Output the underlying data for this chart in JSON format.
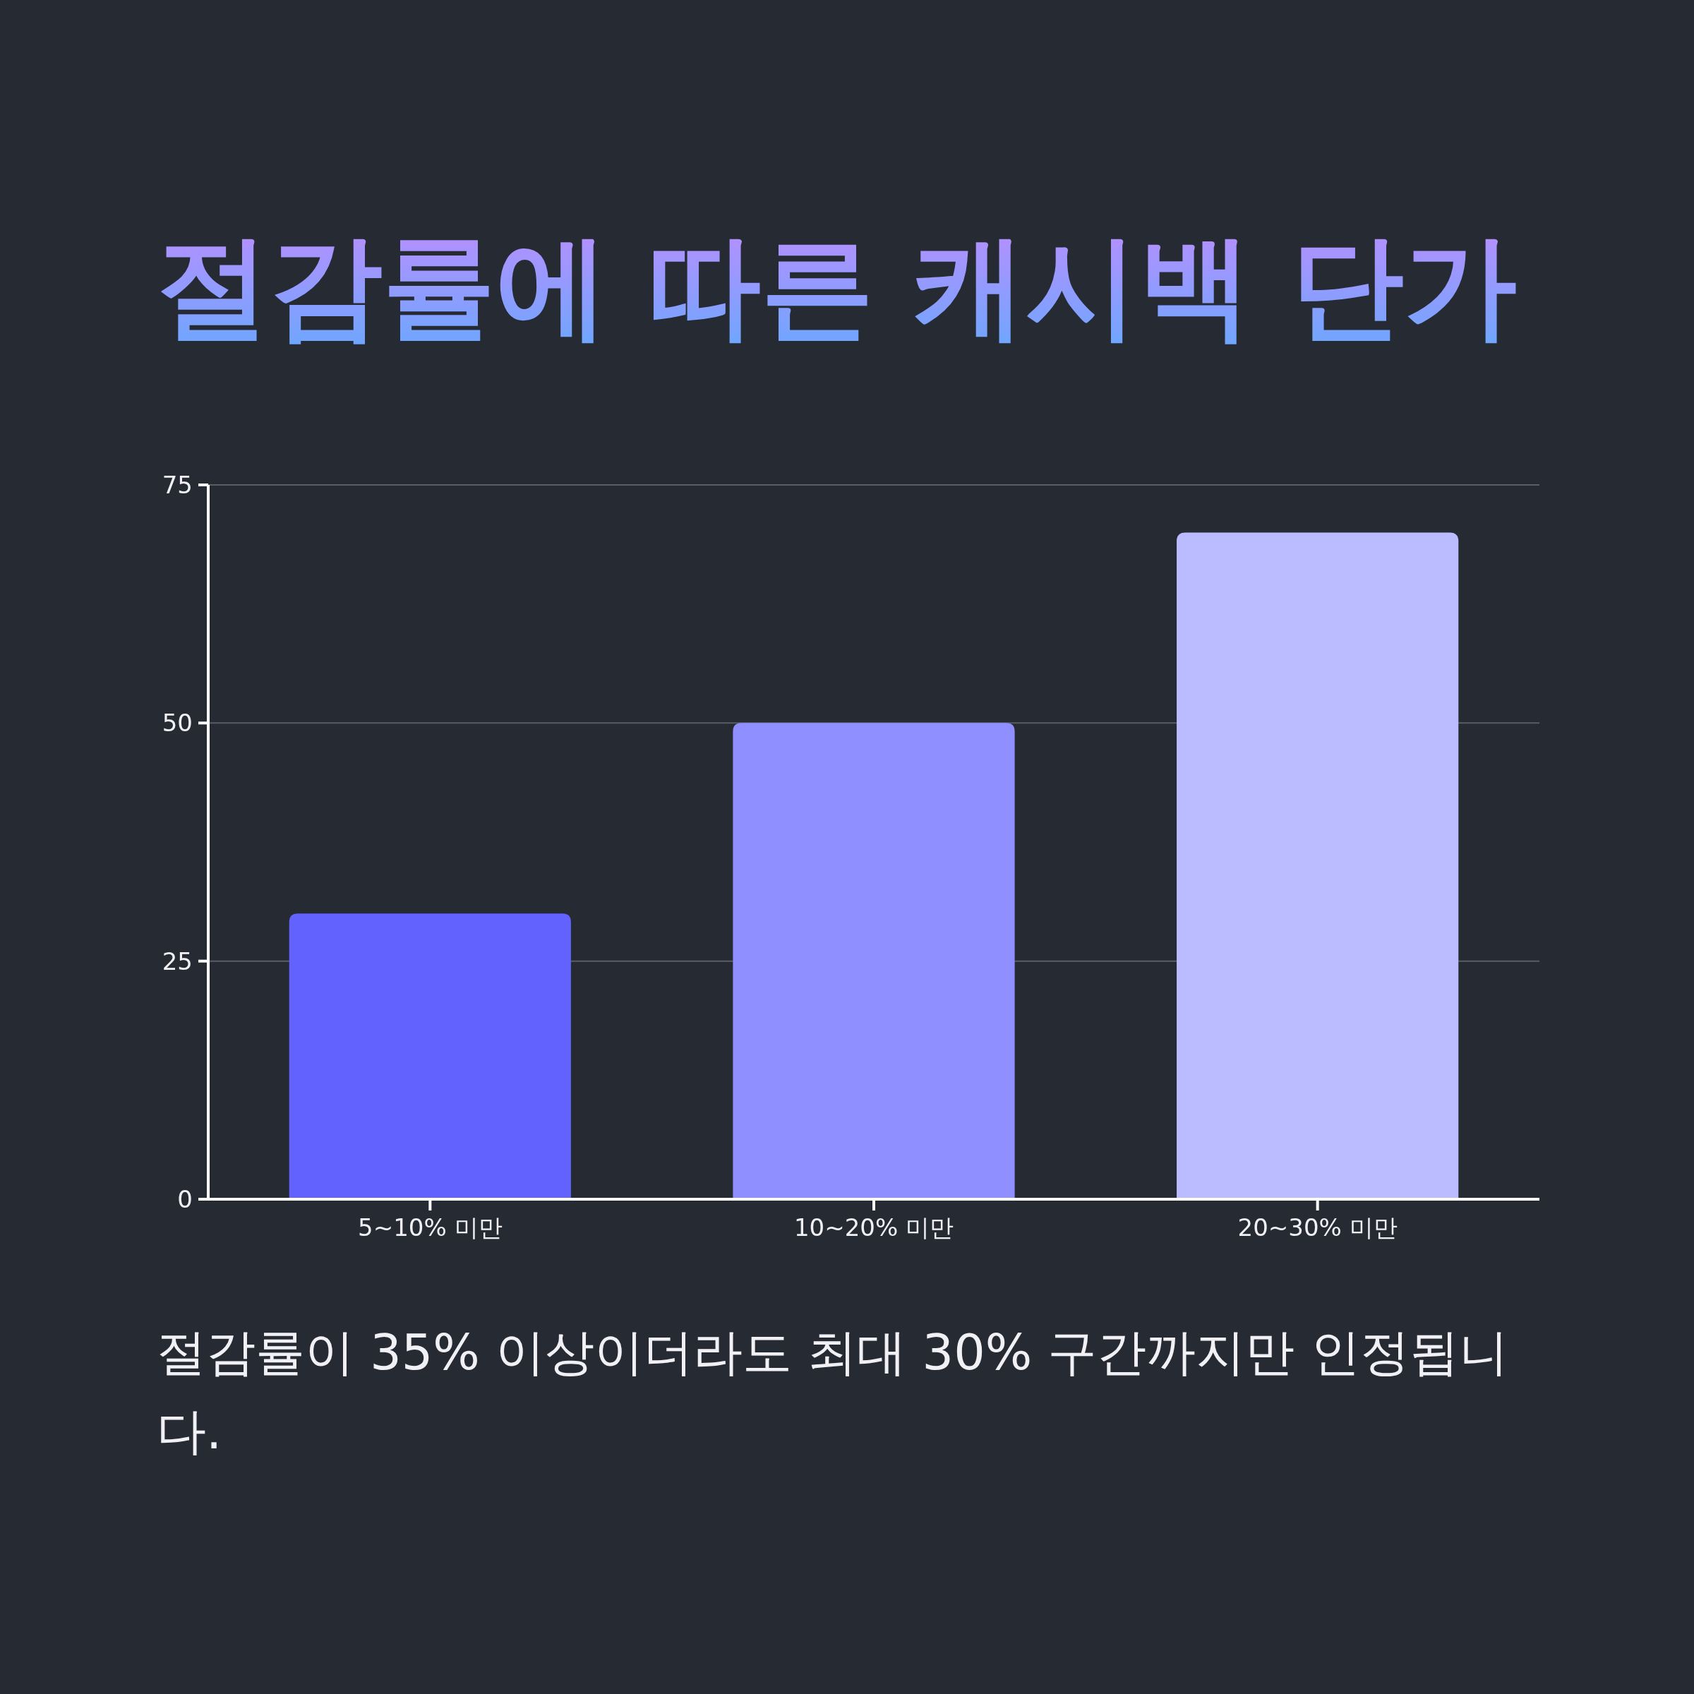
{
  "chart_data": {
    "type": "bar",
    "title": "절감률에 따른 캐시백 단가",
    "categories": [
      "5~10% 미만",
      "10~20% 미만",
      "20~30% 미만"
    ],
    "values": [
      30,
      50,
      70
    ],
    "colors": [
      "#6262ff",
      "#8f8fff",
      "#bbbbff"
    ],
    "ylim": [
      0,
      75
    ],
    "yticks": [
      0,
      25,
      50,
      75
    ],
    "grid": "y",
    "annotations": [
      "절감률이 35% 이상이더라도 최대 30% 구간까지만 인정됩니다."
    ]
  }
}
